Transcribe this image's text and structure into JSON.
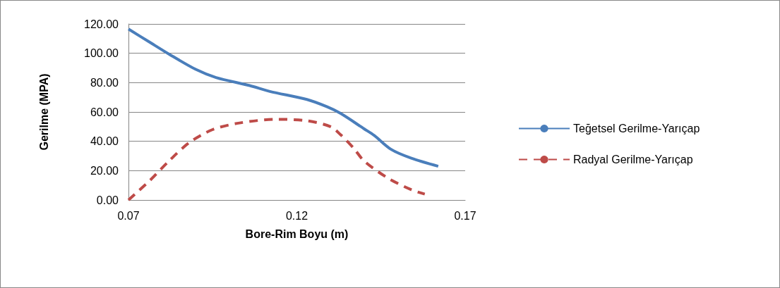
{
  "chart_data": {
    "type": "line",
    "xlabel": "Bore-Rim Boyu (m)",
    "ylabel": "Gerilme (MPA)",
    "xlim": [
      0.07,
      0.17
    ],
    "xticks": [
      0.07,
      0.12,
      0.17
    ],
    "ylim": [
      0,
      120
    ],
    "yticks": [
      {
        "value": 0,
        "label": "0.00"
      },
      {
        "value": 20,
        "label": "20.00"
      },
      {
        "value": 40,
        "label": "40.00"
      },
      {
        "value": 60,
        "label": "60.00"
      },
      {
        "value": 80,
        "label": "80.00"
      },
      {
        "value": 100,
        "label": "100.00"
      },
      {
        "value": 120,
        "label": "120.00"
      }
    ],
    "grid": "y",
    "legend": "right",
    "marker": "none",
    "series": [
      {
        "name": "Teğetsel Gerilme-Yarıçap",
        "color": "#4a7ebb",
        "line_style": "solid",
        "x": [
          0.07,
          0.076,
          0.082,
          0.09,
          0.096,
          0.106,
          0.112,
          0.123,
          0.129,
          0.133,
          0.14,
          0.143,
          0.148,
          0.154,
          0.162
        ],
        "values": [
          116.5,
          108,
          99.5,
          89,
          83.5,
          78,
          74,
          68.5,
          63.5,
          59,
          48.5,
          44,
          34.5,
          28.5,
          23
        ]
      },
      {
        "name": "Radyal Gerilme-Yarıçap",
        "color": "#be4b48",
        "line_style": "dashed",
        "x": [
          0.07,
          0.076,
          0.082,
          0.088,
          0.095,
          0.103,
          0.114,
          0.123,
          0.13,
          0.133,
          0.137,
          0.14,
          0.147,
          0.154,
          0.158
        ],
        "values": [
          0,
          12.5,
          26.5,
          39,
          48,
          52.5,
          55,
          54,
          50,
          44.5,
          35,
          26.5,
          15,
          7,
          4
        ]
      }
    ]
  }
}
